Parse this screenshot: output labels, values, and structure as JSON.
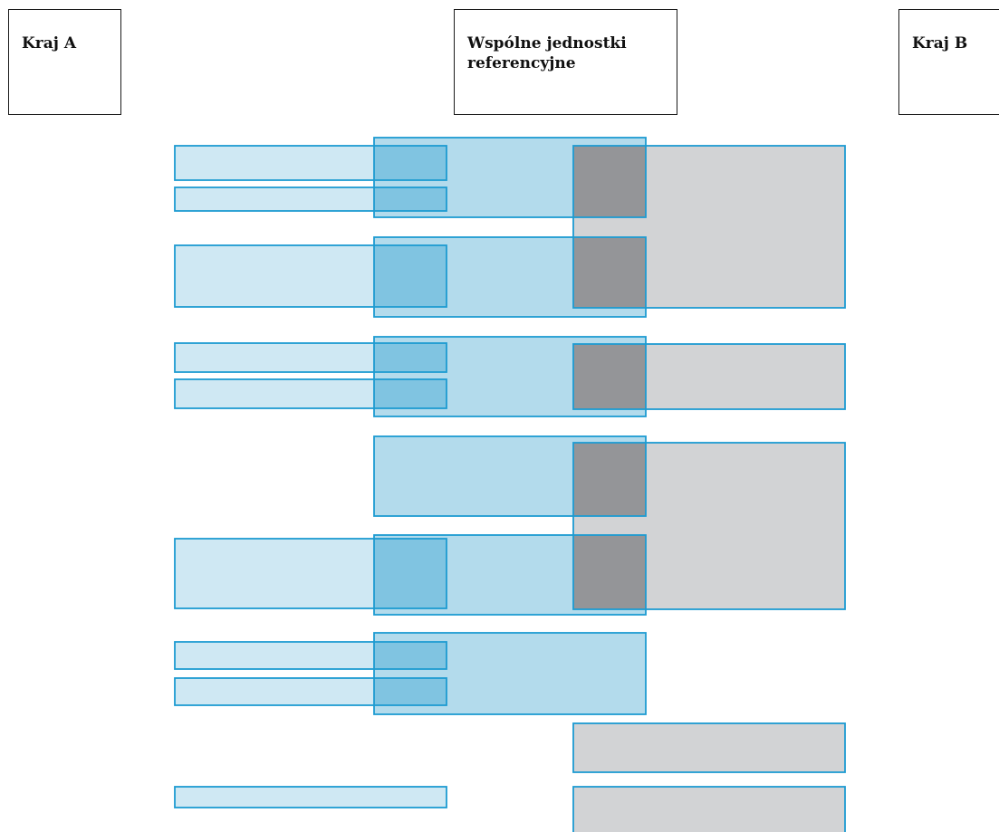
{
  "labels": {
    "country_a": "Kraj A",
    "common": "Wspólne jednostki referencyjne",
    "country_b": "Kraj B"
  },
  "colors": {
    "country_a_fill": "#cfe8f3",
    "common_fill": "#b3dbec",
    "country_b_fill": "#d2d3d5",
    "overlap_a_common": "#80c4e1",
    "overlap_common_b": "#949598",
    "stroke": "#1d9bd1"
  }
}
